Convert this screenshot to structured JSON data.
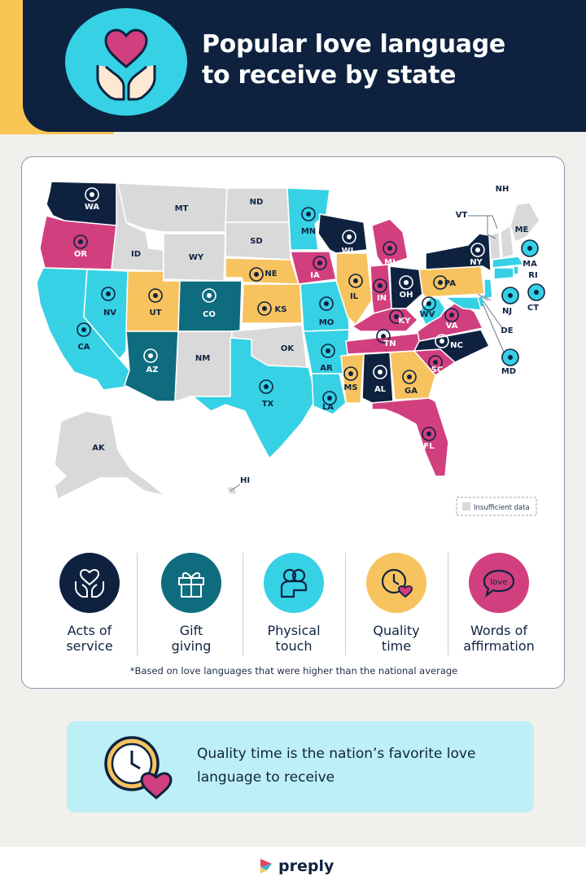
{
  "header": {
    "title_line1": "Popular love language",
    "title_line2": "to receive by state",
    "icon": "heart-in-hands-icon"
  },
  "colors": {
    "acts_of_service": "#0e2240",
    "gift_giving": "#0f6c7e",
    "physical_touch": "#36d1e4",
    "quality_time": "#f7c35f",
    "words_of_affirmation": "#d13f7e",
    "insufficient_data": "#d9d9d9"
  },
  "legend": {
    "items": [
      {
        "line1": "Acts of",
        "line2": "service",
        "icon": "heart-in-hands-icon"
      },
      {
        "line1": "Gift",
        "line2": "giving",
        "icon": "gift-icon"
      },
      {
        "line1": "Physical",
        "line2": "touch",
        "icon": "hug-icon"
      },
      {
        "line1": "Quality",
        "line2": "time",
        "icon": "clock-heart-icon"
      },
      {
        "line1": "Words of",
        "line2": "affirmation",
        "icon": "love-speech-bubble-icon"
      }
    ],
    "insufficient": "Insufficient data"
  },
  "footnote": "*Based on love languages that were higher than the national average",
  "states": {
    "WA": "acts_of_service",
    "OR": "words_of_affirmation",
    "CA": "physical_touch",
    "NV": "physical_touch",
    "ID": "insufficient_data",
    "MT": "insufficient_data",
    "WY": "insufficient_data",
    "UT": "quality_time",
    "CO": "gift_giving",
    "AZ": "gift_giving",
    "NM": "insufficient_data",
    "ND": "insufficient_data",
    "SD": "insufficient_data",
    "NE": "quality_time",
    "KS": "quality_time",
    "OK": "insufficient_data",
    "TX": "physical_touch",
    "MN": "physical_touch",
    "IA": "words_of_affirmation",
    "MO": "physical_touch",
    "AR": "physical_touch",
    "LA": "physical_touch",
    "WI": "acts_of_service",
    "IL": "quality_time",
    "MI": "words_of_affirmation",
    "IN": "words_of_affirmation",
    "OH": "acts_of_service",
    "KY": "words_of_affirmation",
    "TN": "words_of_affirmation",
    "MS": "quality_time",
    "AL": "acts_of_service",
    "GA": "quality_time",
    "FL": "words_of_affirmation",
    "SC": "words_of_affirmation",
    "NC": "acts_of_service",
    "VA": "words_of_affirmation",
    "WV": "physical_touch",
    "PA": "quality_time",
    "NY": "acts_of_service",
    "VT": "insufficient_data",
    "NH": "insufficient_data",
    "ME": "insufficient_data",
    "MA": "physical_touch",
    "RI": "physical_touch",
    "CT": "physical_touch",
    "NJ": "physical_touch",
    "DE": "physical_touch",
    "MD": "physical_touch",
    "AK": "insufficient_data",
    "HI": "insufficient_data"
  },
  "fact": {
    "line1": "Quality time is the nation’s favorite love",
    "line2": "language to receive",
    "icon": "clock-heart-icon"
  },
  "footer": {
    "brand": "preply",
    "logo": "preply-logo-icon"
  }
}
